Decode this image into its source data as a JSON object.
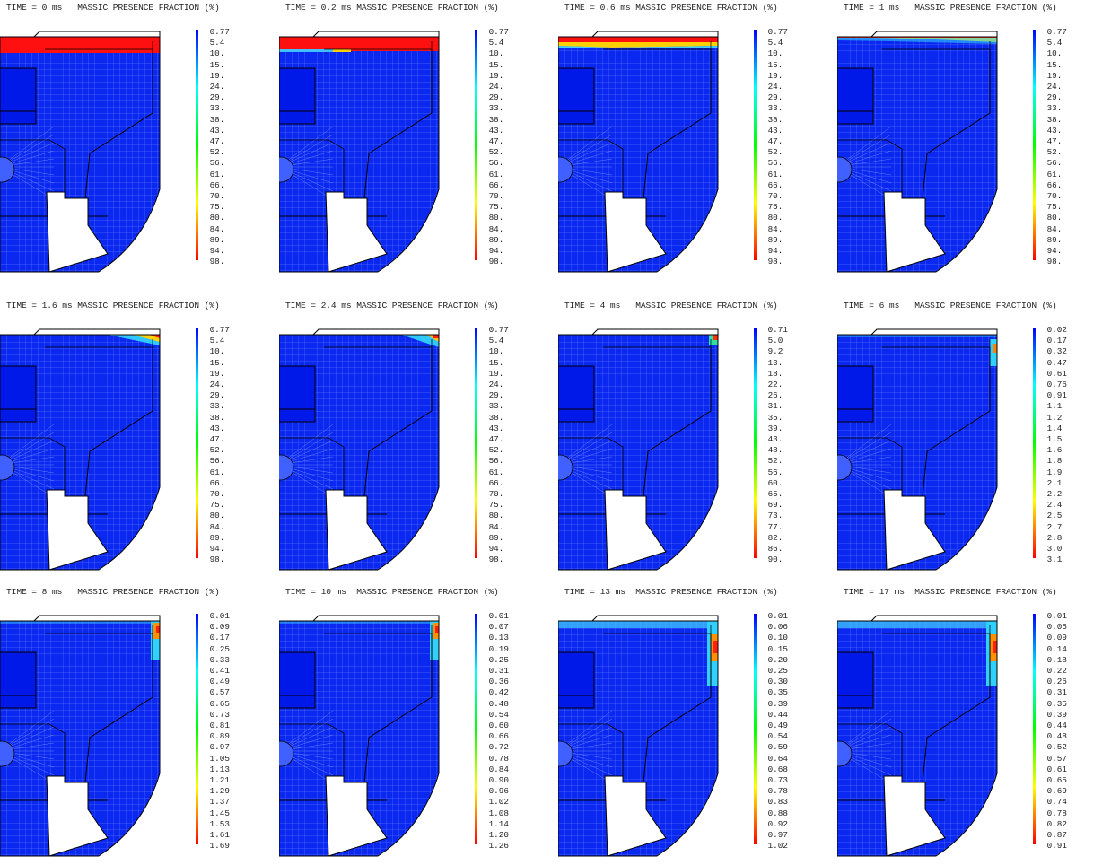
{
  "title_suffix": "MASSIC PRESENCE FRACTION (%)",
  "colormap": [
    "#0000ff",
    "#00ffff",
    "#00ff00",
    "#ffff00",
    "#ff0000"
  ],
  "panels": [
    {
      "time_label": "TIME = 0 ms  ",
      "ticks": [
        "0.77",
        "5.4",
        "10.",
        "15.",
        "19.",
        "24.",
        "29.",
        "33.",
        "38.",
        "43.",
        "47.",
        "52.",
        "56.",
        "61.",
        "66.",
        "70.",
        "75.",
        "80.",
        "84.",
        "89.",
        "94.",
        "98."
      ],
      "top_band": "full",
      "corner": "none"
    },
    {
      "time_label": "TIME = 0.2 ms",
      "ticks": [
        "0.77",
        "5.4",
        "10.",
        "15.",
        "19.",
        "24.",
        "29.",
        "33.",
        "38.",
        "43.",
        "47.",
        "52.",
        "56.",
        "61.",
        "66.",
        "70.",
        "75.",
        "80.",
        "84.",
        "89.",
        "94.",
        "98."
      ],
      "top_band": "full-thin-edge",
      "corner": "none"
    },
    {
      "time_label": "TIME = 0.6 ms",
      "ticks": [
        "0.77",
        "5.4",
        "10.",
        "15.",
        "19.",
        "24.",
        "29.",
        "33.",
        "38.",
        "43.",
        "47.",
        "52.",
        "56.",
        "61.",
        "66.",
        "70.",
        "75.",
        "80.",
        "84.",
        "89.",
        "94.",
        "98."
      ],
      "top_band": "thin",
      "corner": "none"
    },
    {
      "time_label": "TIME = 1 ms  ",
      "ticks": [
        "0.77",
        "5.4",
        "10.",
        "15.",
        "19.",
        "24.",
        "29.",
        "33.",
        "38.",
        "43.",
        "47.",
        "52.",
        "56.",
        "61.",
        "66.",
        "70.",
        "75.",
        "80.",
        "84.",
        "89.",
        "94.",
        "98."
      ],
      "top_band": "thinner",
      "corner": "none"
    },
    {
      "time_label": "TIME = 1.6 ms",
      "ticks": [
        "0.77",
        "5.4",
        "10.",
        "15.",
        "19.",
        "24.",
        "29.",
        "33.",
        "38.",
        "43.",
        "47.",
        "52.",
        "56.",
        "61.",
        "66.",
        "70.",
        "75.",
        "80.",
        "84.",
        "89.",
        "94.",
        "98."
      ],
      "top_band": "none",
      "corner": "top-right-large"
    },
    {
      "time_label": "TIME = 2.4 ms",
      "ticks": [
        "0.77",
        "5.4",
        "10.",
        "15.",
        "19.",
        "24.",
        "29.",
        "33.",
        "38.",
        "43.",
        "47.",
        "52.",
        "56.",
        "61.",
        "66.",
        "70.",
        "75.",
        "80.",
        "84.",
        "89.",
        "94.",
        "98."
      ],
      "top_band": "none",
      "corner": "top-right-medium"
    },
    {
      "time_label": "TIME = 4 ms  ",
      "ticks": [
        "0.71",
        "5.0",
        "9.2",
        "13.",
        "18.",
        "22.",
        "26.",
        "31.",
        "35.",
        "39.",
        "43.",
        "48.",
        "52.",
        "56.",
        "60.",
        "65.",
        "69.",
        "73.",
        "77.",
        "82.",
        "86.",
        "90."
      ],
      "top_band": "none",
      "corner": "top-right-small"
    },
    {
      "time_label": "TIME = 6 ms  ",
      "ticks": [
        "0.02",
        "0.17",
        "0.32",
        "0.47",
        "0.61",
        "0.76",
        "0.91",
        "1.1",
        "1.2",
        "1.4",
        "1.5",
        "1.6",
        "1.8",
        "1.9",
        "2.1",
        "2.2",
        "2.4",
        "2.5",
        "2.7",
        "2.8",
        "3.0",
        "3.1"
      ],
      "top_band": "faint",
      "corner": "right-edge-small"
    },
    {
      "time_label": "TIME = 8 ms  ",
      "ticks": [
        "0.01",
        "0.09",
        "0.17",
        "0.25",
        "0.33",
        "0.41",
        "0.49",
        "0.57",
        "0.65",
        "0.73",
        "0.81",
        "0.89",
        "0.97",
        "1.05",
        "1.13",
        "1.21",
        "1.29",
        "1.37",
        "1.45",
        "1.53",
        "1.61",
        "1.69"
      ],
      "top_band": "faint",
      "corner": "right-edge"
    },
    {
      "time_label": "TIME = 10 ms ",
      "ticks": [
        "0.01",
        "0.07",
        "0.13",
        "0.19",
        "0.25",
        "0.31",
        "0.36",
        "0.42",
        "0.48",
        "0.54",
        "0.60",
        "0.66",
        "0.72",
        "0.78",
        "0.84",
        "0.90",
        "0.96",
        "1.02",
        "1.08",
        "1.14",
        "1.20",
        "1.26"
      ],
      "top_band": "faint",
      "corner": "right-edge"
    },
    {
      "time_label": "TIME = 13 ms ",
      "ticks": [
        "0.01",
        "0.06",
        "0.10",
        "0.15",
        "0.20",
        "0.25",
        "0.30",
        "0.35",
        "0.39",
        "0.44",
        "0.49",
        "0.54",
        "0.59",
        "0.64",
        "0.68",
        "0.73",
        "0.78",
        "0.83",
        "0.88",
        "0.92",
        "0.97",
        "1.02"
      ],
      "top_band": "cyan",
      "corner": "right-edge-long"
    },
    {
      "time_label": "TIME = 17 ms ",
      "ticks": [
        "0.01",
        "0.05",
        "0.09",
        "0.14",
        "0.18",
        "0.22",
        "0.26",
        "0.31",
        "0.35",
        "0.39",
        "0.44",
        "0.48",
        "0.52",
        "0.57",
        "0.61",
        "0.65",
        "0.69",
        "0.74",
        "0.78",
        "0.82",
        "0.87",
        "0.91"
      ],
      "top_band": "cyan",
      "corner": "right-edge-long"
    }
  ]
}
